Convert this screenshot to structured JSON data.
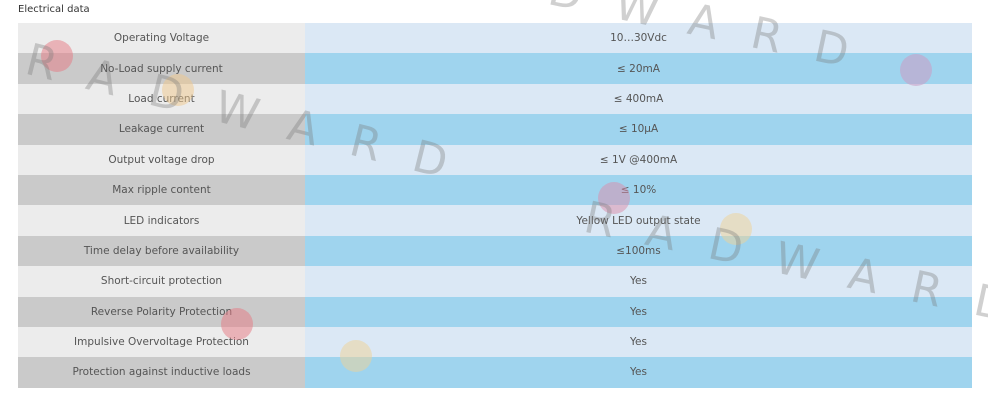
{
  "header": {
    "title": "Electrical data"
  },
  "table": {
    "rows": [
      [
        "Operating Voltage",
        "10…30Vdc"
      ],
      [
        "No-Load supply current",
        "≤ 20mA"
      ],
      [
        "Load current",
        "≤ 400mA"
      ],
      [
        "Leakage current",
        "≤ 10µA"
      ],
      [
        "Output voltage drop",
        "≤ 1V @400mA"
      ],
      [
        "Max ripple content",
        "≤ 10%"
      ],
      [
        "LED indicators",
        "Yellow LED output state"
      ],
      [
        "Time delay before availability",
        "≤100ms"
      ],
      [
        "Short-circuit protection",
        "Yes"
      ],
      [
        "Reverse Polarity Protection",
        "Yes"
      ],
      [
        "Impulsive Overvoltage Protection",
        "Yes"
      ],
      [
        "Protection against inductive loads",
        "Yes"
      ]
    ]
  },
  "watermark": "RADWARD"
}
